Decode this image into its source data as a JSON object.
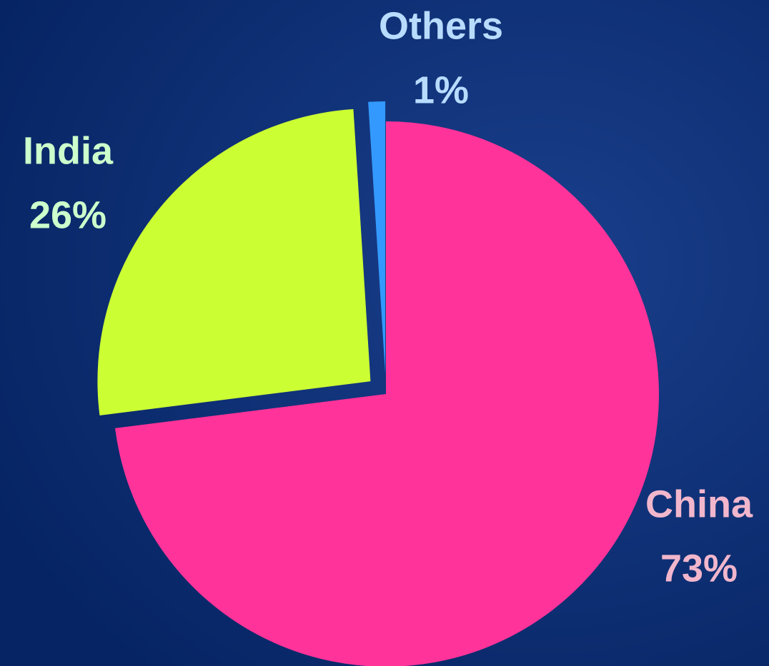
{
  "chart_data": {
    "type": "pie",
    "categories": [
      "China",
      "India",
      "Others"
    ],
    "values": [
      73,
      26,
      1
    ],
    "value_labels": [
      "73%",
      "26%",
      "1%"
    ],
    "colors": [
      "#ff3399",
      "#ccff33",
      "#3399ff"
    ],
    "label_colors": [
      "#f2b6cc",
      "#ccffcc",
      "#b8dcff"
    ]
  }
}
